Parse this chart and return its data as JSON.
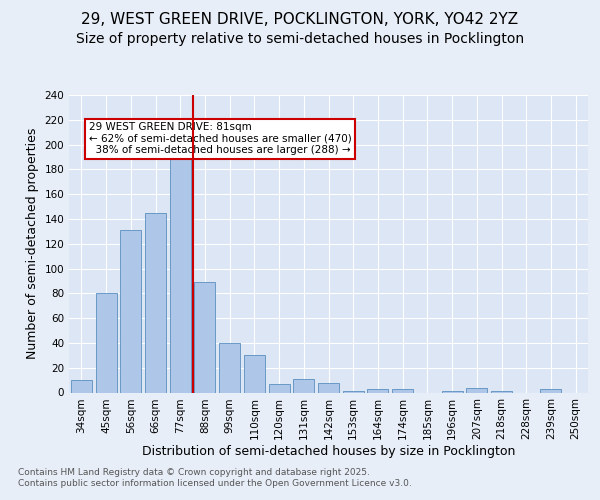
{
  "title1": "29, WEST GREEN DRIVE, POCKLINGTON, YORK, YO42 2YZ",
  "title2": "Size of property relative to semi-detached houses in Pocklington",
  "xlabel": "Distribution of semi-detached houses by size in Pocklington",
  "ylabel": "Number of semi-detached properties",
  "categories": [
    "34sqm",
    "45sqm",
    "56sqm",
    "66sqm",
    "77sqm",
    "88sqm",
    "99sqm",
    "110sqm",
    "120sqm",
    "131sqm",
    "142sqm",
    "153sqm",
    "164sqm",
    "174sqm",
    "185sqm",
    "196sqm",
    "207sqm",
    "218sqm",
    "228sqm",
    "239sqm",
    "250sqm"
  ],
  "values": [
    10,
    80,
    131,
    145,
    202,
    89,
    40,
    30,
    7,
    11,
    8,
    1,
    3,
    3,
    0,
    1,
    4,
    1,
    0,
    3,
    0
  ],
  "bar_color": "#aec6e8",
  "bar_edge_color": "#5a8fc0",
  "highlight_index": 4,
  "highlight_line_color": "#cc0000",
  "property_label": "29 WEST GREEN DRIVE: 81sqm",
  "pct_smaller": 62,
  "count_smaller": 470,
  "pct_larger": 38,
  "count_larger": 288,
  "annotation_box_color": "#ffffff",
  "annotation_box_edge": "#cc0000",
  "ylim": [
    0,
    240
  ],
  "yticks": [
    0,
    20,
    40,
    60,
    80,
    100,
    120,
    140,
    160,
    180,
    200,
    220,
    240
  ],
  "footer": "Contains HM Land Registry data © Crown copyright and database right 2025.\nContains public sector information licensed under the Open Government Licence v3.0.",
  "bg_color": "#e8eef8",
  "plot_bg_color": "#dce6f5",
  "grid_color": "#ffffff",
  "title1_fontsize": 11,
  "title2_fontsize": 10,
  "xlabel_fontsize": 9,
  "ylabel_fontsize": 9,
  "tick_fontsize": 7.5,
  "footer_fontsize": 6.5,
  "annot_fontsize": 7.5
}
